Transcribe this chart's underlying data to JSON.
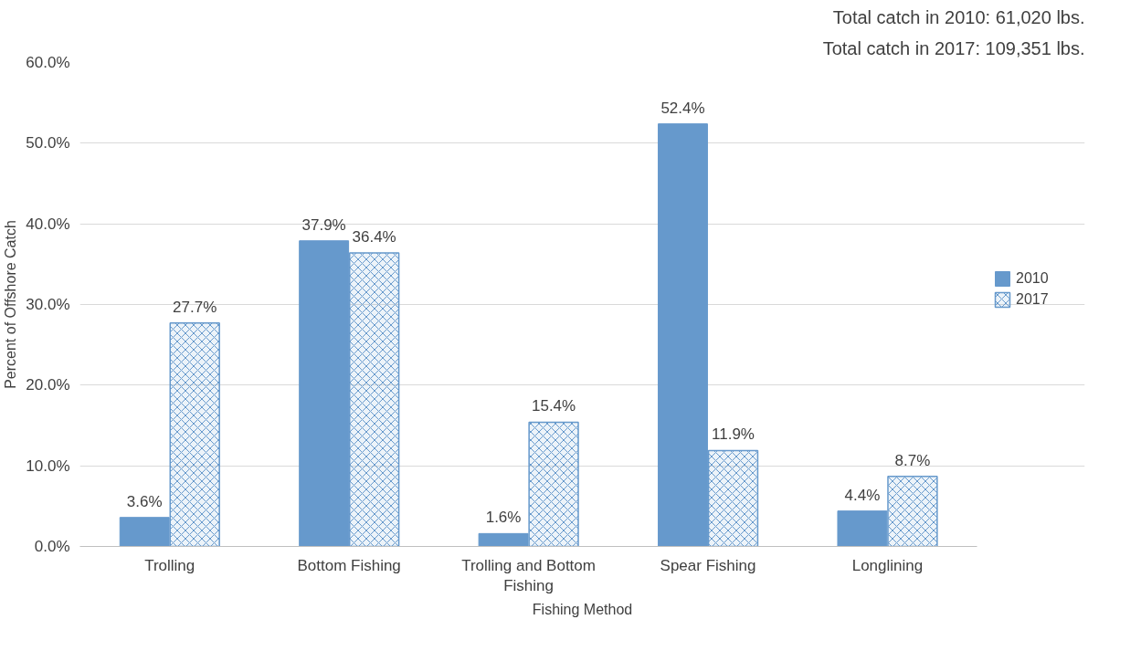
{
  "chart_data": {
    "type": "bar",
    "xlabel": "Fishing Method",
    "ylabel": "Percent of Offshore Catch",
    "annotations": [
      "Total catch in 2010: 61,020 lbs.",
      "Total catch in 2017: 109,351 lbs."
    ],
    "categories": [
      "Trolling",
      "Bottom Fishing",
      "Trolling and Bottom Fishing",
      "Spear Fishing",
      "Longlining"
    ],
    "series": [
      {
        "name": "2010",
        "color": "#6699cc",
        "values": [
          3.6,
          37.9,
          1.6,
          52.4,
          4.4
        ],
        "value_labels": [
          "3.6%",
          "37.9%",
          "1.6%",
          "52.4%",
          "4.4%"
        ]
      },
      {
        "name": "2017",
        "color": "#6699cc",
        "values": [
          27.7,
          36.4,
          15.4,
          11.9,
          8.7
        ],
        "value_labels": [
          "27.7%",
          "36.4%",
          "15.4%",
          "11.9%",
          "8.7%"
        ]
      }
    ],
    "ylim": [
      0,
      60
    ],
    "yticks": [
      {
        "value": 0,
        "label": "0.0%"
      },
      {
        "value": 10,
        "label": "10.0%"
      },
      {
        "value": 20,
        "label": "20.0%"
      },
      {
        "value": 30,
        "label": "30.0%"
      },
      {
        "value": 40,
        "label": "40.0%"
      },
      {
        "value": 50,
        "label": "50.0%"
      },
      {
        "value": 60,
        "label": "60.0%"
      }
    ],
    "grid": "y",
    "legend": "right"
  }
}
